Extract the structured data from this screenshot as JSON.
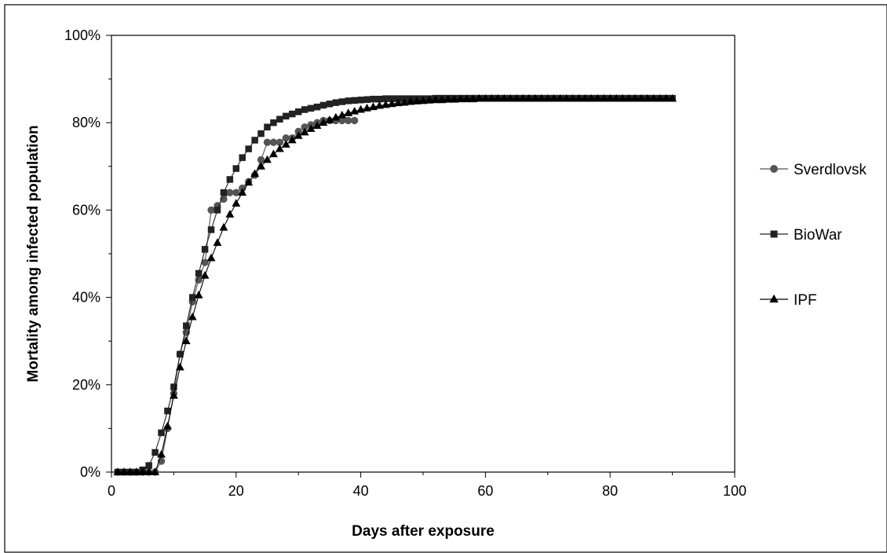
{
  "chart_data": {
    "type": "line",
    "title": "",
    "xlabel": "Days after exposure",
    "ylabel": "Mortality among infected population",
    "xlim": [
      0,
      100
    ],
    "ylim": [
      0,
      100
    ],
    "x_ticks": [
      0,
      20,
      40,
      60,
      80,
      100
    ],
    "x_tick_labels": [
      "0",
      "20",
      "40",
      "60",
      "80",
      "100"
    ],
    "y_ticks": [
      0,
      20,
      40,
      60,
      80,
      100
    ],
    "y_tick_labels": [
      "0%",
      "20%",
      "40%",
      "60%",
      "80%",
      "100%"
    ],
    "grid": false,
    "legend_position": "right",
    "series": [
      {
        "name": "Sverdlovsk",
        "marker": "circle",
        "color": "#555555",
        "x": [
          1,
          2,
          3,
          4,
          5,
          6,
          7,
          8,
          9,
          10,
          11,
          12,
          13,
          14,
          15,
          16,
          17,
          18,
          19,
          20,
          21,
          22,
          23,
          24,
          25,
          26,
          27,
          28,
          29,
          30,
          31,
          32,
          33,
          34,
          35,
          36,
          37,
          38,
          39
        ],
        "y": [
          0,
          0,
          0,
          0,
          0,
          0,
          0,
          2.5,
          10,
          18,
          27,
          32,
          39,
          44,
          48,
          60,
          61,
          62.5,
          64,
          64,
          65,
          66.5,
          68,
          71.5,
          75.5,
          75.5,
          75.5,
          76.5,
          76.5,
          78,
          79,
          79.5,
          80,
          80.5,
          80.5,
          80.5,
          80.5,
          80.5,
          80.5
        ]
      },
      {
        "name": "BioWar",
        "marker": "square",
        "color": "#222222",
        "x": [
          1,
          2,
          3,
          4,
          5,
          6,
          7,
          8,
          9,
          10,
          11,
          12,
          13,
          14,
          15,
          16,
          17,
          18,
          19,
          20,
          21,
          22,
          23,
          24,
          25,
          26,
          27,
          28,
          29,
          30,
          31,
          32,
          33,
          34,
          35,
          36,
          37,
          38,
          39,
          40,
          41,
          42,
          43,
          44,
          45,
          46,
          47,
          48,
          49,
          50,
          51,
          52,
          53,
          54,
          55,
          56,
          57,
          58,
          59,
          60,
          61,
          62,
          63,
          64,
          65,
          66,
          67,
          68,
          69,
          70,
          71,
          72,
          73,
          74,
          75,
          76,
          77,
          78,
          79,
          80,
          81,
          82,
          83,
          84,
          85,
          86,
          87,
          88,
          89,
          90
        ],
        "y": [
          0,
          0,
          0,
          0,
          0.5,
          1.5,
          4.5,
          9,
          14,
          19.5,
          27,
          33.5,
          40,
          45.5,
          51,
          55.5,
          60,
          64,
          67,
          69.5,
          72,
          74,
          76,
          77.5,
          79,
          80,
          80.8,
          81.5,
          82,
          82.5,
          83,
          83.3,
          83.6,
          84,
          84.3,
          84.6,
          84.8,
          85,
          85.1,
          85.2,
          85.3,
          85.4,
          85.4,
          85.5,
          85.5,
          85.5,
          85.5,
          85.5,
          85.5,
          85.5,
          85.5,
          85.6,
          85.6,
          85.6,
          85.6,
          85.6,
          85.6,
          85.6,
          85.6,
          85.6,
          85.6,
          85.6,
          85.6,
          85.6,
          85.6,
          85.6,
          85.6,
          85.6,
          85.6,
          85.6,
          85.6,
          85.6,
          85.6,
          85.6,
          85.6,
          85.6,
          85.6,
          85.6,
          85.6,
          85.6,
          85.6,
          85.6,
          85.6,
          85.6,
          85.6,
          85.6,
          85.6,
          85.6,
          85.6,
          85.6
        ]
      },
      {
        "name": "IPF",
        "marker": "triangle",
        "color": "#000000",
        "x": [
          1,
          2,
          3,
          4,
          5,
          6,
          7,
          8,
          9,
          10,
          11,
          12,
          13,
          14,
          15,
          16,
          17,
          18,
          19,
          20,
          21,
          22,
          23,
          24,
          25,
          26,
          27,
          28,
          29,
          30,
          31,
          32,
          33,
          34,
          35,
          36,
          37,
          38,
          39,
          40,
          41,
          42,
          43,
          44,
          45,
          46,
          47,
          48,
          49,
          50,
          51,
          52,
          53,
          54,
          55,
          56,
          57,
          58,
          59,
          60,
          61,
          62,
          63,
          64,
          65,
          66,
          67,
          68,
          69,
          70,
          71,
          72,
          73,
          74,
          75,
          76,
          77,
          78,
          79,
          80,
          81,
          82,
          83,
          84,
          85,
          86,
          87,
          88,
          89,
          90
        ],
        "y": [
          0,
          0,
          0,
          0,
          0,
          0,
          0,
          4,
          10.5,
          17.5,
          24,
          30,
          35.5,
          40.5,
          45,
          49,
          52.5,
          56,
          59,
          61.5,
          64,
          66.3,
          68.3,
          70,
          71.5,
          72.8,
          74,
          75,
          76,
          77,
          77.8,
          78.6,
          79.3,
          80,
          80.6,
          81.2,
          81.7,
          82.2,
          82.6,
          83,
          83.3,
          83.6,
          83.9,
          84.1,
          84.3,
          84.5,
          84.6,
          84.8,
          84.9,
          85,
          85.1,
          85.2,
          85.2,
          85.3,
          85.3,
          85.4,
          85.4,
          85.4,
          85.5,
          85.5,
          85.5,
          85.5,
          85.5,
          85.5,
          85.5,
          85.5,
          85.5,
          85.5,
          85.5,
          85.5,
          85.5,
          85.5,
          85.5,
          85.5,
          85.5,
          85.5,
          85.5,
          85.5,
          85.5,
          85.5,
          85.5,
          85.5,
          85.5,
          85.5,
          85.5,
          85.5,
          85.5,
          85.5,
          85.5,
          85.5
        ]
      }
    ]
  }
}
